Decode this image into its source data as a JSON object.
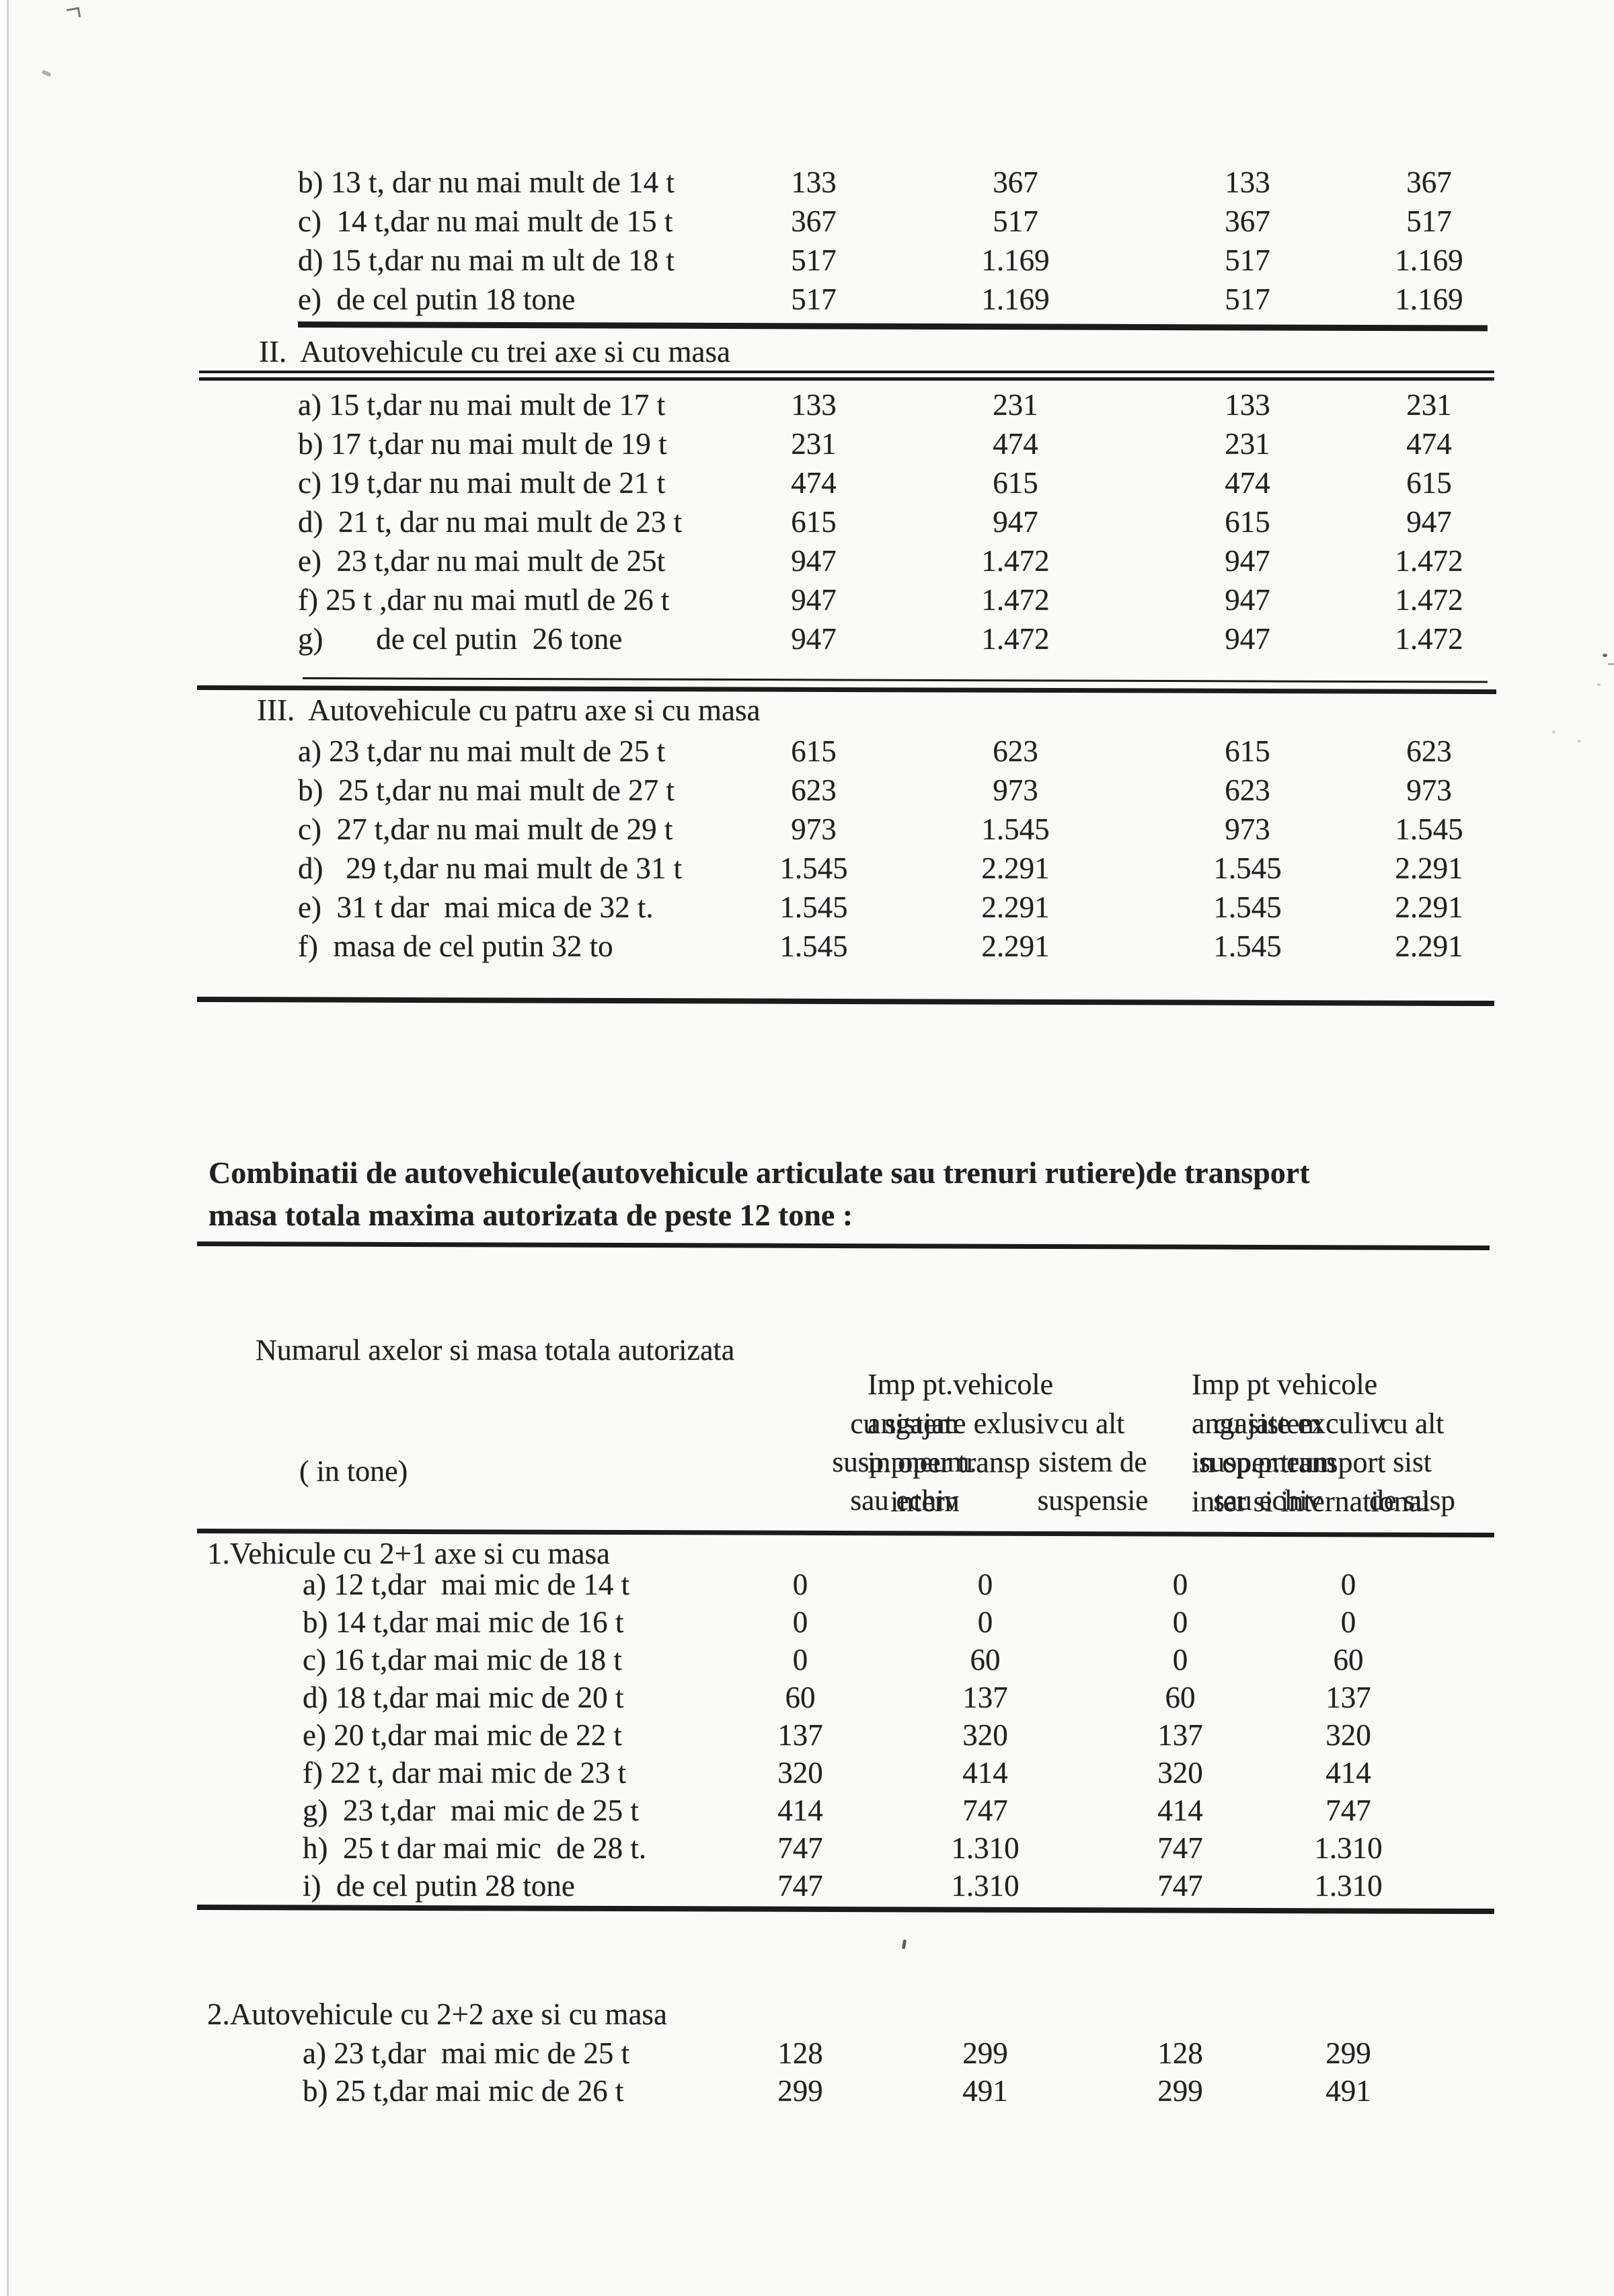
{
  "document": {
    "paper_color": "#fafbf8",
    "ink_color": "#212121",
    "edge_line_color": "#c9d4da"
  },
  "continuation_table": {
    "section_I_rows": [
      {
        "label": "b) 13 t, dar nu mai mult de 14 t",
        "values": [
          "133",
          "367",
          "133",
          "367"
        ]
      },
      {
        "label": "c)  14 t,dar nu mai mult de 15 t",
        "values": [
          "367",
          "517",
          "367",
          "517"
        ]
      },
      {
        "label": "d) 15 t,dar nu mai m ult de 18 t",
        "values": [
          "517",
          "1.169",
          "517",
          "1.169"
        ]
      },
      {
        "label": "e)  de cel putin 18 tone",
        "values": [
          "517",
          "1.169",
          "517",
          "1.169"
        ]
      }
    ],
    "section_II": {
      "heading": "II.  Autovehicule cu trei axe si cu masa",
      "rows": [
        {
          "label": "a) 15 t,dar nu mai mult de 17 t",
          "values": [
            "133",
            "231",
            "133",
            "231"
          ]
        },
        {
          "label": "b) 17 t,dar nu mai mult de 19 t",
          "values": [
            "231",
            "474",
            "231",
            "474"
          ]
        },
        {
          "label": "c) 19 t,dar nu mai mult de 21 t",
          "values": [
            "474",
            "615",
            "474",
            "615"
          ]
        },
        {
          "label": "d)  21 t, dar nu mai mult de 23 t",
          "values": [
            "615",
            "947",
            "615",
            "947"
          ]
        },
        {
          "label": "e)  23 t,dar nu mai mult de 25t",
          "values": [
            "947",
            "1.472",
            "947",
            "1.472"
          ]
        },
        {
          "label": "f) 25 t ,dar nu mai mutl de 26 t",
          "values": [
            "947",
            "1.472",
            "947",
            "1.472"
          ]
        },
        {
          "label": "g)       de cel putin  26 tone",
          "values": [
            "947",
            "1.472",
            "947",
            "1.472"
          ]
        }
      ]
    },
    "section_III": {
      "heading": "III.  Autovehicule cu patru axe si cu masa",
      "rows": [
        {
          "label": "a) 23 t,dar nu mai mult de 25 t",
          "values": [
            "615",
            "623",
            "615",
            "623"
          ]
        },
        {
          "label": "b)  25 t,dar nu mai mult de 27 t",
          "values": [
            "623",
            "973",
            "623",
            "973"
          ]
        },
        {
          "label": "c)  27 t,dar nu mai mult de 29 t",
          "values": [
            "973",
            "1.545",
            "973",
            "1.545"
          ]
        },
        {
          "label": "d)   29 t,dar nu mai mult de 31 t",
          "values": [
            "1.545",
            "2.291",
            "1.545",
            "2.291"
          ]
        },
        {
          "label": "e)  31 t dar  mai mica de 32 t.",
          "values": [
            "1.545",
            "2.291",
            "1.545",
            "2.291"
          ]
        },
        {
          "label": "f)  masa de cel putin 32 to",
          "values": [
            "1.545",
            "2.291",
            "1.545",
            "2.291"
          ]
        }
      ]
    }
  },
  "combined_table": {
    "title_line1": "Combinatii de autovehicule(autovehicule articulate sau trenuri rutiere)de transport",
    "title_line2": "masa totala maxima autorizata de peste 12 tone :",
    "header": {
      "axles_line1": "Numarul axelor si masa totala autorizata",
      "axles_line2": "( in tone)",
      "intern_group": [
        "Imp pt.vehicole",
        "angajate exlusiv",
        "in oper transp",
        "intern"
      ],
      "international_group": [
        "Imp pt vehicole",
        "angajate exculiv",
        "in oper.transport",
        "inter si international"
      ],
      "sub_rows": [
        [
          "cu sistem",
          "cu alt",
          "cu sistem",
          "cu alt"
        ],
        [
          "susp.pneum.",
          "sistem de",
          "susp.pneum",
          "sist"
        ],
        [
          "sau echiv",
          "suspensie",
          "sau echiv",
          "de susp"
        ]
      ]
    },
    "section_1": {
      "heading": "1.Vehicule cu 2+1 axe si cu masa",
      "rows": [
        {
          "label": "a) 12 t,dar  mai mic de 14 t",
          "values": [
            "0",
            "0",
            "0",
            "0"
          ]
        },
        {
          "label": "b) 14 t,dar mai mic de 16 t",
          "values": [
            "0",
            "0",
            "0",
            "0"
          ]
        },
        {
          "label": "c) 16 t,dar mai mic de 18 t",
          "values": [
            "0",
            "60",
            "0",
            "60"
          ]
        },
        {
          "label": "d) 18 t,dar mai mic de 20 t",
          "values": [
            "60",
            "137",
            "60",
            "137"
          ]
        },
        {
          "label": "e) 20 t,dar mai mic de 22 t",
          "values": [
            "137",
            "320",
            "137",
            "320"
          ]
        },
        {
          "label": "f) 22 t, dar mai mic de 23 t",
          "values": [
            "320",
            "414",
            "320",
            "414"
          ]
        },
        {
          "label": "g)  23 t,dar  mai mic de 25 t",
          "values": [
            "414",
            "747",
            "414",
            "747"
          ]
        },
        {
          "label": "h)  25 t dar mai mic  de 28 t.",
          "values": [
            "747",
            "1.310",
            "747",
            "1.310"
          ]
        },
        {
          "label": "i)  de cel putin 28 tone",
          "values": [
            "747",
            "1.310",
            "747",
            "1.310"
          ]
        }
      ]
    },
    "section_2": {
      "heading": "2.Autovehicule cu 2+2 axe si cu masa",
      "rows": [
        {
          "label": "a) 23 t,dar  mai mic de 25 t",
          "values": [
            "128",
            "299",
            "128",
            "299"
          ]
        },
        {
          "label": "b) 25 t,dar mai mic de 26 t",
          "values": [
            "299",
            "491",
            "299",
            "491"
          ]
        }
      ]
    }
  }
}
